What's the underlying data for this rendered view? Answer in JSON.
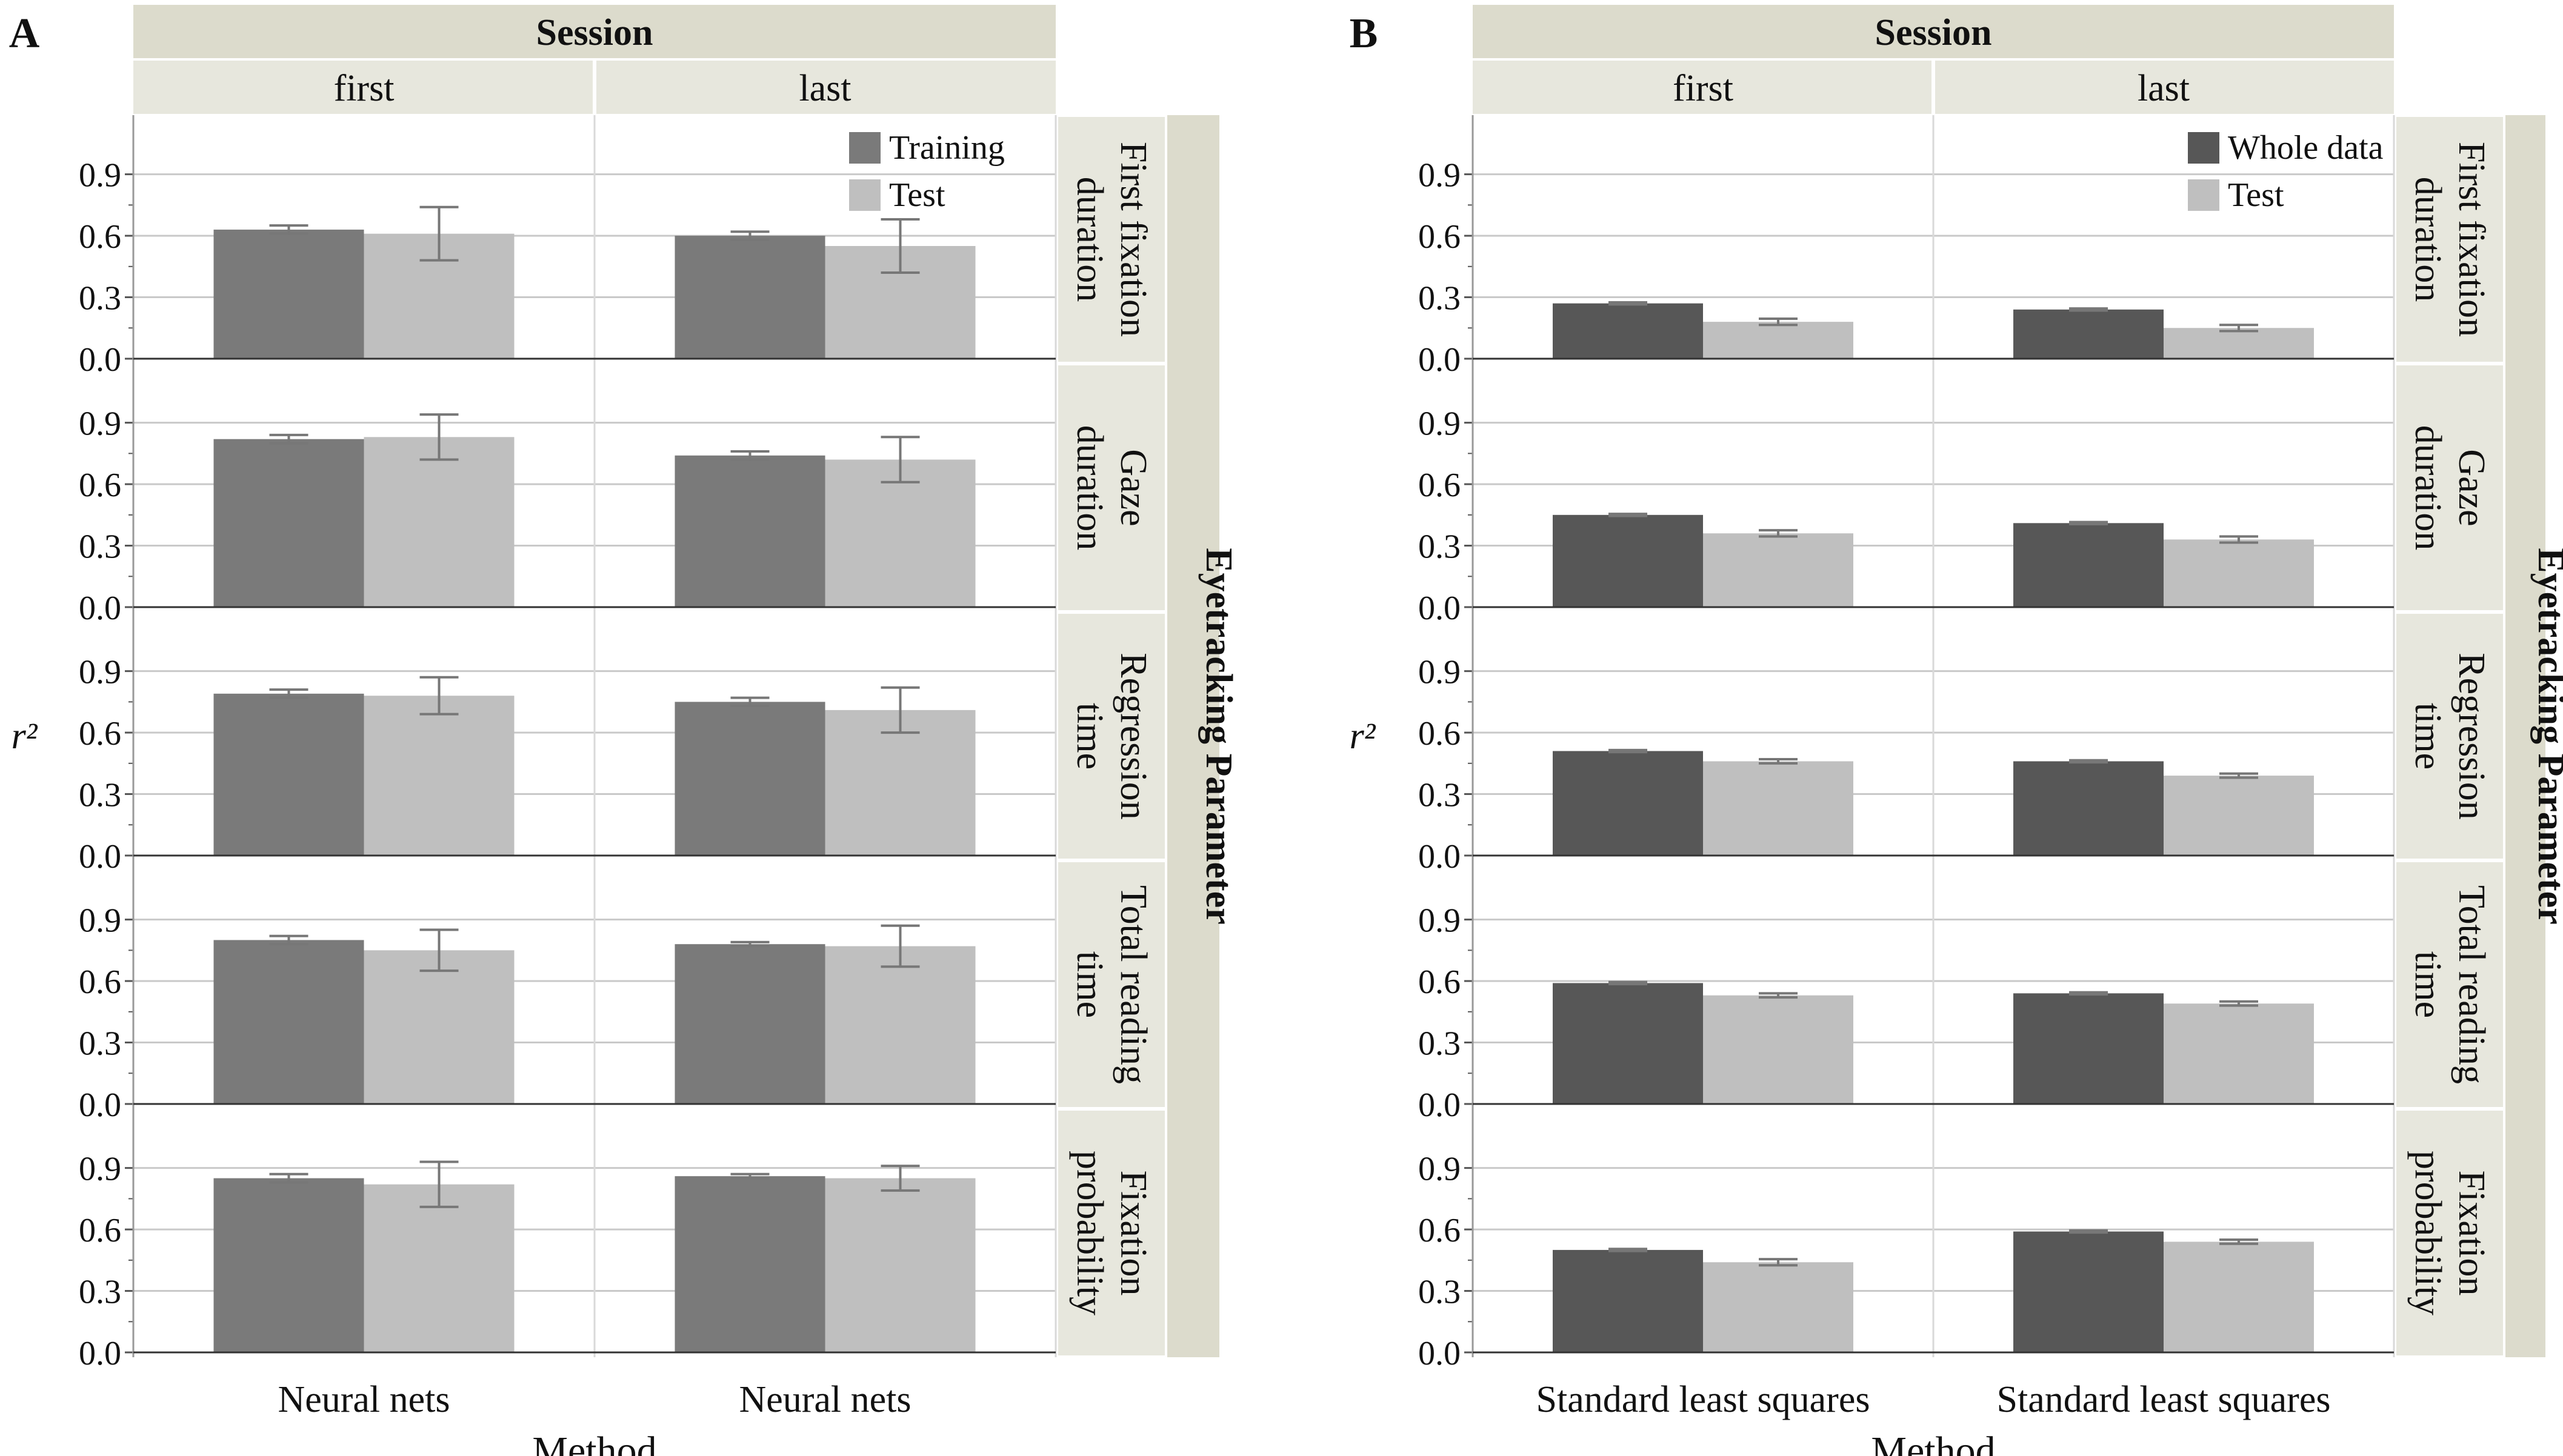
{
  "figure": {
    "colors": {
      "facet_header_bg": "#dcdbcc",
      "facet_strip_bg": "#e7e7dd",
      "gridline": "#c9c9c9",
      "axis_line": "#555555",
      "error_bar": "#777777",
      "text": "#111111"
    }
  },
  "chart_data": [
    {
      "panel_label": "A",
      "type": "bar",
      "column_facet_title": "Session",
      "column_facets": [
        "first",
        "last"
      ],
      "row_facet_title": "Eyetracking Parameter",
      "row_facets": [
        [
          "First fixation",
          "duration"
        ],
        [
          "Gaze",
          "duration"
        ],
        [
          "Regression",
          "time"
        ],
        [
          "Total reading",
          "time"
        ],
        [
          "Fixation",
          "probability"
        ]
      ],
      "categories": [
        "Neural nets",
        "Neural nets"
      ],
      "xlabel": "Method",
      "ylabel": "r²",
      "ylim": [
        0,
        1.1
      ],
      "yticks": [
        "0.0",
        "0.3",
        "0.6",
        "0.9"
      ],
      "grid": true,
      "legend_position": "top-right",
      "series": [
        {
          "name": "Training",
          "color": "#7a7a7a",
          "values": [
            [
              0.63,
              0.6
            ],
            [
              0.82,
              0.74
            ],
            [
              0.79,
              0.75
            ],
            [
              0.8,
              0.78
            ],
            [
              0.85,
              0.86
            ]
          ],
          "errors": [
            [
              0.02,
              0.02
            ],
            [
              0.02,
              0.02
            ],
            [
              0.02,
              0.02
            ],
            [
              0.02,
              0.01
            ],
            [
              0.02,
              0.01
            ]
          ]
        },
        {
          "name": "Test",
          "color": "#bfbfbf",
          "values": [
            [
              0.61,
              0.55
            ],
            [
              0.83,
              0.72
            ],
            [
              0.78,
              0.71
            ],
            [
              0.75,
              0.77
            ],
            [
              0.82,
              0.85
            ]
          ],
          "errors": [
            [
              0.13,
              0.13
            ],
            [
              0.11,
              0.11
            ],
            [
              0.09,
              0.11
            ],
            [
              0.1,
              0.1
            ],
            [
              0.11,
              0.06
            ]
          ]
        }
      ]
    },
    {
      "panel_label": "B",
      "type": "bar",
      "column_facet_title": "Session",
      "column_facets": [
        "first",
        "last"
      ],
      "row_facet_title": "Eyetracking Parameter",
      "row_facets": [
        [
          "First fixation",
          "duration"
        ],
        [
          "Gaze",
          "duration"
        ],
        [
          "Regression",
          "time"
        ],
        [
          "Total reading",
          "time"
        ],
        [
          "Fixation",
          "probability"
        ]
      ],
      "categories": [
        "Standard least squares",
        "Standard least squares"
      ],
      "xlabel": "Method",
      "ylabel": "r²",
      "ylim": [
        0,
        1.1
      ],
      "yticks": [
        "0.0",
        "0.3",
        "0.6",
        "0.9"
      ],
      "grid": true,
      "legend_position": "top-right",
      "series": [
        {
          "name": "Whole data",
          "color": "#575757",
          "values": [
            [
              0.27,
              0.24
            ],
            [
              0.45,
              0.41
            ],
            [
              0.51,
              0.46
            ],
            [
              0.59,
              0.54
            ],
            [
              0.5,
              0.59
            ]
          ],
          "errors": [
            [
              0.005,
              0.005
            ],
            [
              0.005,
              0.005
            ],
            [
              0.005,
              0.005
            ],
            [
              0.005,
              0.005
            ],
            [
              0.005,
              0.005
            ]
          ]
        },
        {
          "name": "Test",
          "color": "#bfbfbf",
          "values": [
            [
              0.18,
              0.15
            ],
            [
              0.36,
              0.33
            ],
            [
              0.46,
              0.39
            ],
            [
              0.53,
              0.49
            ],
            [
              0.44,
              0.54
            ]
          ],
          "errors": [
            [
              0.015,
              0.015
            ],
            [
              0.015,
              0.015
            ],
            [
              0.01,
              0.01
            ],
            [
              0.01,
              0.01
            ],
            [
              0.015,
              0.01
            ]
          ]
        }
      ]
    }
  ]
}
